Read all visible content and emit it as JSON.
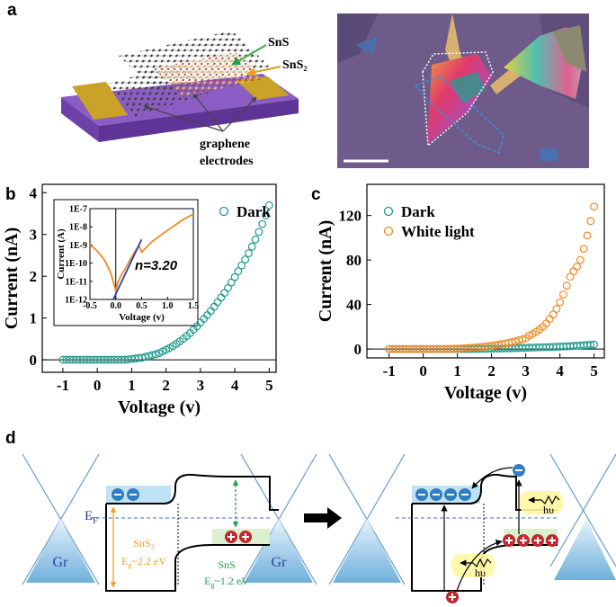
{
  "panel_labels": [
    "a",
    "b",
    "c",
    "d"
  ],
  "panel_a": {
    "sns": "SnS",
    "sns2": "SnS₂",
    "electrodes": [
      "graphene",
      "electrodes"
    ]
  },
  "chart_data": [
    {
      "type": "scatter",
      "xlabel": "Voltage (v)",
      "ylabel": "Current (nA)",
      "xlim": [
        -1.6,
        5.2
      ],
      "xticks": [
        -1,
        0,
        1,
        2,
        3,
        4,
        5
      ],
      "ylim": [
        -0.3,
        4.2
      ],
      "yticks": [
        0,
        1,
        2,
        3,
        4
      ],
      "grid": false,
      "legend": "upper right",
      "series": [
        {
          "name": "Dark",
          "color": "#1f9a8c",
          "x": [
            -1,
            -0.9,
            -0.8,
            -0.7,
            -0.6,
            -0.5,
            -0.4,
            -0.3,
            -0.2,
            -0.1,
            0,
            0.1,
            0.2,
            0.3,
            0.4,
            0.5,
            0.6,
            0.7,
            0.8,
            0.9,
            1,
            1.1,
            1.2,
            1.3,
            1.4,
            1.5,
            1.6,
            1.7,
            1.8,
            1.9,
            2,
            2.1,
            2.2,
            2.3,
            2.4,
            2.5,
            2.6,
            2.7,
            2.8,
            2.9,
            3,
            3.1,
            3.2,
            3.3,
            3.4,
            3.5,
            3.6,
            3.7,
            3.8,
            3.9,
            4,
            4.1,
            4.2,
            4.3,
            4.4,
            4.5,
            4.6,
            4.7,
            4.8,
            4.9,
            5
          ],
          "values": [
            0,
            0,
            0,
            0,
            0,
            0,
            0,
            0,
            0,
            0,
            0,
            0,
            0,
            0,
            0,
            0,
            0,
            0,
            0,
            0.01,
            0.02,
            0.03,
            0.04,
            0.05,
            0.07,
            0.09,
            0.11,
            0.13,
            0.16,
            0.2,
            0.24,
            0.28,
            0.33,
            0.38,
            0.44,
            0.5,
            0.57,
            0.64,
            0.72,
            0.8,
            0.89,
            0.98,
            1.07,
            1.17,
            1.27,
            1.38,
            1.49,
            1.6,
            1.72,
            1.85,
            1.98,
            2.12,
            2.26,
            2.4,
            2.55,
            2.71,
            2.88,
            3.06,
            3.25,
            3.46,
            3.7
          ]
        }
      ],
      "inset": {
        "type": "line",
        "xlabel": "Voltage (v)",
        "ylabel": "Current (A)",
        "annotation": "n=3.20",
        "xlim": [
          -0.5,
          1.5
        ],
        "xticks": [
          -0.5,
          {
            "value": 0,
            "label": "0.0"
          },
          0.5,
          {
            "value": 1,
            "label": "1.0"
          },
          1.5
        ],
        "log_y": true,
        "ylim": [
          1e-12,
          1e-07
        ],
        "yticks": [
          {
            "value": 1e-07,
            "label": "1E-7"
          },
          {
            "value": 1e-08,
            "label": "1E-8"
          },
          {
            "value": 1e-09,
            "label": "1E-9"
          },
          {
            "value": 1e-10,
            "label": "1E-10"
          },
          {
            "value": 1e-11,
            "label": "1E-11"
          },
          {
            "value": 1e-12,
            "label": "1E-12"
          }
        ],
        "series": [
          {
            "color": "#f08a24",
            "x": [
              -0.5,
              -0.4,
              -0.3,
              -0.2,
              -0.1,
              -0.05,
              0,
              0.05,
              0.1,
              0.2,
              0.3,
              0.4,
              0.45,
              0.5,
              0.7,
              0.9,
              1.1,
              1.3,
              1.5
            ],
            "values": [
              1e-09,
              6e-10,
              3e-10,
              1.2e-10,
              3e-11,
              1e-11,
              3e-12,
              1e-11,
              2e-11,
              6e-11,
              2e-10,
              6e-10,
              9e-10,
              4e-10,
              1.5e-09,
              4e-09,
              1e-08,
              2.5e-08,
              5e-08
            ]
          },
          {
            "color": "#2a3fbf",
            "x": [
              -0.05,
              0.5
            ],
            "values": [
              1e-12,
              2e-09
            ]
          }
        ]
      }
    },
    {
      "type": "scatter",
      "xlabel": "Voltage (v)",
      "ylabel": "Current (nA)",
      "xlim": [
        -1.65,
        5.3
      ],
      "xticks": [
        -1,
        0,
        1,
        2,
        3,
        4,
        5
      ],
      "ylim": [
        -8,
        148
      ],
      "yticks": [
        0,
        40,
        80,
        120
      ],
      "grid": false,
      "legend": "upper left",
      "series": [
        {
          "name": "Dark",
          "color": "#1f9a8c",
          "x": [
            -1,
            -0.9,
            -0.8,
            -0.7,
            -0.6,
            -0.5,
            -0.4,
            -0.3,
            -0.2,
            -0.1,
            0,
            0.1,
            0.2,
            0.3,
            0.4,
            0.5,
            0.6,
            0.7,
            0.8,
            0.9,
            1,
            1.1,
            1.2,
            1.3,
            1.4,
            1.5,
            1.6,
            1.7,
            1.8,
            1.9,
            2,
            2.1,
            2.2,
            2.3,
            2.4,
            2.5,
            2.6,
            2.7,
            2.8,
            2.9,
            3,
            3.1,
            3.2,
            3.3,
            3.4,
            3.5,
            3.6,
            3.7,
            3.8,
            3.9,
            4,
            4.1,
            4.2,
            4.3,
            4.4,
            4.5,
            4.6,
            4.7,
            4.8,
            4.9,
            5
          ],
          "values": [
            0,
            0,
            0,
            0,
            0,
            0,
            0,
            0,
            0,
            0,
            0,
            0,
            0,
            0,
            0,
            0,
            0,
            0,
            0,
            0,
            0,
            0,
            0,
            0,
            0,
            0.1,
            0.1,
            0.2,
            0.2,
            0.3,
            0.3,
            0.4,
            0.4,
            0.5,
            0.6,
            0.6,
            0.7,
            0.8,
            0.9,
            1.0,
            1.1,
            1.2,
            1.3,
            1.4,
            1.5,
            1.6,
            1.7,
            1.8,
            1.9,
            2.0,
            2.1,
            2.3,
            2.4,
            2.6,
            2.8,
            3.0,
            3.2,
            3.4,
            3.6,
            3.8,
            4.0
          ]
        },
        {
          "name": "White light",
          "color": "#f08a24",
          "x": [
            -1,
            -0.9,
            -0.8,
            -0.7,
            -0.6,
            -0.5,
            -0.4,
            -0.3,
            -0.2,
            -0.1,
            0,
            0.1,
            0.2,
            0.3,
            0.4,
            0.5,
            0.6,
            0.7,
            0.8,
            0.9,
            1,
            1.1,
            1.2,
            1.3,
            1.4,
            1.5,
            1.6,
            1.7,
            1.8,
            1.9,
            2,
            2.1,
            2.2,
            2.3,
            2.4,
            2.5,
            2.6,
            2.7,
            2.8,
            2.9,
            3,
            3.1,
            3.2,
            3.3,
            3.4,
            3.5,
            3.6,
            3.7,
            3.8,
            3.9,
            4,
            4.1,
            4.2,
            4.3,
            4.4,
            4.5,
            4.6,
            4.7,
            4.8,
            4.9,
            5
          ],
          "values": [
            0,
            0,
            0,
            0,
            0,
            0,
            0,
            0,
            0,
            0,
            0,
            0,
            0,
            0,
            0,
            0,
            0.1,
            0.1,
            0.2,
            0.3,
            0.4,
            0.5,
            0.7,
            0.9,
            1.1,
            1.3,
            1.6,
            1.9,
            2.2,
            2.6,
            3.0,
            3.4,
            3.9,
            4.4,
            5.0,
            5.6,
            6.3,
            7.0,
            7.8,
            8.7,
            9.7,
            12,
            13.5,
            15.5,
            17.5,
            20,
            23,
            27,
            31,
            36,
            42,
            49,
            57,
            65,
            70,
            74,
            80,
            90,
            102,
            115,
            128
          ]
        }
      ]
    }
  ],
  "panel_d": {
    "gr": "Gr",
    "ef": [
      "E",
      "F"
    ],
    "sns2": "SnS₂",
    "eg_sns2": [
      "E",
      "g",
      "~2.2 eV"
    ],
    "sns": "SnS",
    "eg_sns": [
      "E",
      "g",
      "~1.2 eV"
    ],
    "photon": "hυ"
  }
}
